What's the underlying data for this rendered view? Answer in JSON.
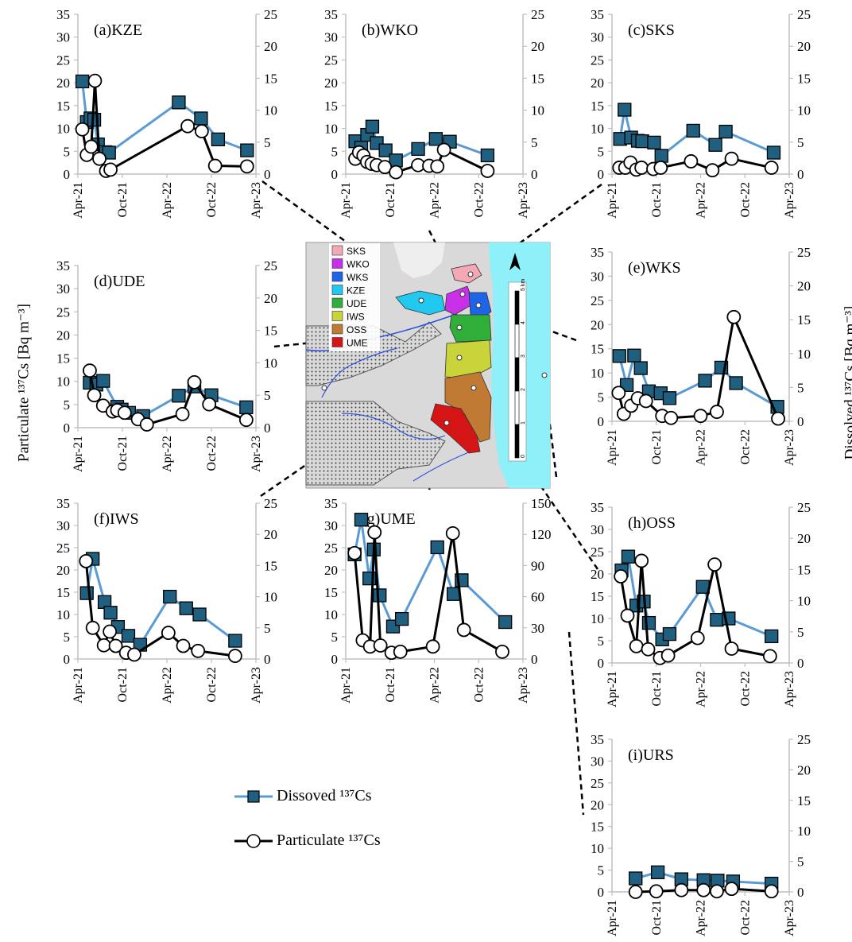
{
  "axis_labels": {
    "particulate": "Particulate ¹³⁷Cs [Bq m⁻³]",
    "dissolved": "Dissolved ¹³⁷Cs [Bq m⁻³]"
  },
  "legend": {
    "dissolved": "Dissoved ¹³⁷Cs",
    "particulate": "Particulate ¹³⁷Cs"
  },
  "colors": {
    "dissolved_line": "#5b9bd5",
    "dissolved_marker": "#1f5f7f",
    "particulate_line": "#000000",
    "axis": "#bfbfbf",
    "map_water": "#8ef0f8",
    "map_land": "#d9d9d9"
  },
  "map": {
    "legend_items": [
      {
        "label": "SKS",
        "color": "#f4a7b4"
      },
      {
        "label": "WKO",
        "color": "#c830e8"
      },
      {
        "label": "WKS",
        "color": "#1e64e6"
      },
      {
        "label": "KZE",
        "color": "#21c8ef"
      },
      {
        "label": "UDE",
        "color": "#2fae3a"
      },
      {
        "label": "IWS",
        "color": "#c9d33a"
      },
      {
        "label": "OSS",
        "color": "#c07a34"
      },
      {
        "label": "UME",
        "color": "#d51515"
      }
    ],
    "scale_label": "5 km",
    "scale_ticks": [
      "0",
      "1",
      "2",
      "3",
      "4",
      "5 km"
    ],
    "north_label": "N"
  },
  "chart_data": [
    {
      "id": "a",
      "type": "line",
      "title": "(a)KZE",
      "x_ticks": [
        "Apr-21",
        "Oct-21",
        "Apr-22",
        "Oct-22",
        "Apr-23"
      ],
      "y_left": {
        "ticks": [
          "0",
          "5",
          "10",
          "15",
          "20",
          "25",
          "30",
          "35"
        ],
        "lim": [
          0,
          35
        ]
      },
      "y_right": {
        "ticks": [
          "0",
          "5",
          "10",
          "15",
          "20",
          "25"
        ],
        "lim": [
          0,
          25
        ]
      },
      "series": [
        {
          "name": "Dissoved ¹³⁷Cs",
          "axis": "left",
          "x": [
            0.6,
            1.2,
            1.7,
            2.2,
            2.7,
            3.7,
            4.2,
            13.6,
            16.6,
            18.9,
            22.8
          ],
          "values": [
            20.3,
            11.4,
            12.2,
            11.9,
            6.5,
            4.8,
            4.7,
            15.7,
            12.2,
            7.6,
            5.2
          ]
        },
        {
          "name": "Particulate ¹³⁷Cs",
          "axis": "right",
          "x": [
            0.6,
            1.2,
            1.8,
            2.3,
            2.9,
            3.8,
            4.4,
            14.8,
            16.7,
            18.5,
            22.8
          ],
          "values": [
            7.0,
            3.0,
            4.3,
            14.6,
            2.4,
            0.5,
            0.7,
            7.5,
            6.7,
            1.3,
            1.2
          ]
        }
      ]
    },
    {
      "id": "b",
      "type": "line",
      "title": "(b)WKO",
      "x_ticks": [
        "Apr-21",
        "Oct-21",
        "Apr-22",
        "Oct-22",
        "Apr-23"
      ],
      "y_left": {
        "ticks": [
          "0",
          "5",
          "10",
          "15",
          "20",
          "25",
          "30",
          "35"
        ],
        "lim": [
          0,
          35
        ]
      },
      "y_right": {
        "ticks": [
          "0",
          "5",
          "10",
          "15",
          "20",
          "25"
        ],
        "lim": [
          0,
          25
        ]
      },
      "series": [
        {
          "name": "Dissoved ¹³⁷Cs",
          "axis": "left",
          "x": [
            1.3,
            2.1,
            2.9,
            3.6,
            4.2,
            5.4,
            6.8,
            9.8,
            12.2,
            14.1,
            19.2
          ],
          "values": [
            7.2,
            5.8,
            8.6,
            10.4,
            6.8,
            5.2,
            3.0,
            5.5,
            7.7,
            7.1,
            4.1
          ]
        },
        {
          "name": "Particulate ¹³⁷Cs",
          "axis": "right",
          "x": [
            1.3,
            1.8,
            2.4,
            2.9,
            3.5,
            4.2,
            5.3,
            6.8,
            9.8,
            11.3,
            12.4,
            13.3,
            19.2
          ],
          "values": [
            2.4,
            3.4,
            2.9,
            1.9,
            1.6,
            1.4,
            1.1,
            0.3,
            1.4,
            1.3,
            1.2,
            3.8,
            0.5
          ]
        }
      ]
    },
    {
      "id": "c",
      "type": "line",
      "title": "(c)SKS",
      "x_ticks": [
        "Apr-21",
        "Oct-21",
        "Apr-22",
        "Oct-22",
        "Apr-23"
      ],
      "y_left": {
        "ticks": [
          "0",
          "5",
          "10",
          "15",
          "20",
          "25",
          "30",
          "35"
        ],
        "lim": [
          0,
          35
        ]
      },
      "y_right": {
        "ticks": [
          "0",
          "5",
          "10",
          "15",
          "20",
          "25"
        ],
        "lim": [
          0,
          25
        ]
      },
      "series": [
        {
          "name": "Dissoved ¹³⁷Cs",
          "axis": "left",
          "x": [
            1.1,
            1.7,
            2.6,
            3.5,
            4.1,
            5.7,
            6.7,
            11.0,
            14.0,
            15.4,
            21.9
          ],
          "values": [
            7.7,
            14.1,
            8.0,
            7.3,
            7.2,
            6.9,
            4.0,
            9.5,
            6.4,
            9.3,
            4.7
          ]
        },
        {
          "name": "Particulate ¹³⁷Cs",
          "axis": "right",
          "x": [
            1.0,
            1.8,
            2.5,
            3.3,
            4.0,
            5.6,
            6.6,
            10.7,
            13.6,
            16.2,
            21.6
          ],
          "values": [
            1.0,
            1.0,
            1.8,
            0.7,
            1.0,
            0.8,
            1.0,
            2.0,
            0.6,
            2.4,
            1.0
          ]
        }
      ]
    },
    {
      "id": "d",
      "type": "line",
      "title": "(d)UDE",
      "x_ticks": [
        "Apr-21",
        "Oct-21",
        "Apr-22",
        "Oct-22",
        "Apr-23"
      ],
      "y_left": {
        "ticks": [
          "0",
          "5",
          "10",
          "15",
          "20",
          "25",
          "30",
          "35"
        ],
        "lim": [
          0,
          35
        ]
      },
      "y_right": {
        "ticks": [
          "0",
          "5",
          "10",
          "15",
          "20",
          "25"
        ],
        "lim": [
          0,
          25
        ]
      },
      "series": [
        {
          "name": "Dissoved ¹³⁷Cs",
          "axis": "left",
          "x": [
            1.6,
            2.5,
            3.4,
            5.3,
            5.9,
            6.9,
            8.8,
            13.6,
            15.7,
            18.0,
            22.7
          ],
          "values": [
            9.7,
            9.3,
            10.1,
            4.5,
            3.9,
            3.2,
            2.5,
            6.9,
            8.9,
            7.0,
            4.4
          ]
        },
        {
          "name": "Particulate ¹³⁷Cs",
          "axis": "right",
          "x": [
            1.6,
            2.2,
            3.4,
            4.7,
            5.3,
            6.3,
            8.1,
            9.3,
            14.1,
            15.7,
            17.7,
            22.7
          ],
          "values": [
            8.8,
            5.0,
            3.4,
            2.5,
            2.7,
            2.3,
            1.3,
            0.5,
            2.1,
            7.0,
            3.6,
            1.2
          ]
        }
      ]
    },
    {
      "id": "e",
      "type": "line",
      "title": "(e)WKS",
      "x_ticks": [
        "Apr-21",
        "Oct-21",
        "Apr-22",
        "Oct-22",
        "Apr-23"
      ],
      "y_left": {
        "ticks": [
          "0",
          "5",
          "10",
          "15",
          "20",
          "25",
          "30",
          "35"
        ],
        "lim": [
          0,
          35
        ]
      },
      "y_right": {
        "ticks": [
          "0",
          "5",
          "10",
          "15",
          "20",
          "25"
        ],
        "lim": [
          0,
          25
        ]
      },
      "series": [
        {
          "name": "Dissoved ¹³⁷Cs",
          "axis": "left",
          "x": [
            1.0,
            2.0,
            3.0,
            3.9,
            5.0,
            6.6,
            7.8,
            12.6,
            14.8,
            16.8,
            22.4
          ],
          "values": [
            13.5,
            7.5,
            13.6,
            11.0,
            6.2,
            5.8,
            4.8,
            8.4,
            11.1,
            7.9,
            3.0
          ]
        },
        {
          "name": "Particulate ¹³⁷Cs",
          "axis": "right",
          "x": [
            0.9,
            1.6,
            2.6,
            3.5,
            4.6,
            6.8,
            8.0,
            12.0,
            14.2,
            16.5,
            22.5
          ],
          "values": [
            4.2,
            1.1,
            2.3,
            3.4,
            3.0,
            0.8,
            0.5,
            0.8,
            1.4,
            15.4,
            0.4
          ]
        }
      ]
    },
    {
      "id": "f",
      "type": "line",
      "title": "(f)IWS",
      "x_ticks": [
        "Apr-21",
        "Oct-21",
        "Apr-22",
        "Oct-22",
        "Apr-23"
      ],
      "y_left": {
        "ticks": [
          "0",
          "5",
          "10",
          "15",
          "20",
          "25",
          "30",
          "35"
        ],
        "lim": [
          0,
          35
        ]
      },
      "y_right": {
        "ticks": [
          "0",
          "5",
          "10",
          "15",
          "20",
          "25"
        ],
        "lim": [
          0,
          25
        ]
      },
      "series": [
        {
          "name": "Dissoved ¹³⁷Cs",
          "axis": "left",
          "x": [
            1.2,
            2.0,
            3.6,
            4.4,
            5.4,
            6.8,
            8.4,
            12.4,
            14.6,
            16.4,
            21.2
          ],
          "values": [
            14.8,
            22.5,
            12.8,
            10.4,
            7.2,
            5.2,
            3.2,
            14.0,
            11.4,
            10.0,
            4.1
          ]
        },
        {
          "name": "Particulate ¹³⁷Cs",
          "axis": "right",
          "x": [
            1.1,
            2.0,
            3.5,
            4.3,
            5.1,
            6.5,
            7.6,
            12.2,
            14.2,
            16.2,
            21.2
          ],
          "values": [
            15.7,
            5.0,
            2.2,
            4.4,
            2.1,
            1.0,
            0.7,
            4.2,
            2.1,
            1.3,
            0.5
          ]
        }
      ]
    },
    {
      "id": "g",
      "type": "line",
      "title": "(g)UME",
      "x_ticks": [
        "Apr-21",
        "Oct-21",
        "Apr-22",
        "Oct-22",
        "Apr-23"
      ],
      "y_left": {
        "ticks": [
          "0",
          "5",
          "10",
          "15",
          "20",
          "25",
          "30",
          "35"
        ],
        "lim": [
          0,
          35
        ]
      },
      "y_right": {
        "ticks": [
          "0",
          "30",
          "60",
          "90",
          "120",
          "150"
        ],
        "lim": [
          0,
          150
        ]
      },
      "series": [
        {
          "name": "Dissoved ¹³⁷Cs",
          "axis": "left",
          "x": [
            1.2,
            2.1,
            3.2,
            3.8,
            4.6,
            6.4,
            7.6,
            12.4,
            14.6,
            15.7,
            21.6
          ],
          "values": [
            23.5,
            31.3,
            18.1,
            24.6,
            14.3,
            7.3,
            9.0,
            25.1,
            14.6,
            17.7,
            8.3
          ]
        },
        {
          "name": "Particulate ¹³⁷Cs",
          "axis": "right",
          "x": [
            1.2,
            2.3,
            3.3,
            3.9,
            4.7,
            6.2,
            7.4,
            11.8,
            14.5,
            16.0,
            21.2
          ],
          "values": [
            102,
            18,
            12,
            122,
            13,
            6,
            7,
            12,
            121,
            28,
            7
          ]
        }
      ]
    },
    {
      "id": "h",
      "type": "line",
      "title": "(h)OSS",
      "x_ticks": [
        "Apr-21",
        "Oct-21",
        "Apr-22",
        "Oct-22",
        "Apr-23"
      ],
      "y_left": {
        "ticks": [
          "0",
          "5",
          "10",
          "15",
          "20",
          "25",
          "30",
          "35"
        ],
        "lim": [
          0,
          35
        ]
      },
      "y_right": {
        "ticks": [
          "0",
          "5",
          "10",
          "15",
          "20",
          "25"
        ],
        "lim": [
          0,
          25
        ]
      },
      "series": [
        {
          "name": "Dissoved ¹³⁷Cs",
          "axis": "left",
          "x": [
            1.3,
            2.2,
            3.3,
            4.3,
            5.0,
            6.8,
            7.8,
            12.3,
            14.2,
            15.8,
            21.6
          ],
          "values": [
            20.8,
            23.9,
            12.9,
            13.8,
            9.0,
            5.3,
            6.5,
            17.1,
            9.7,
            10.0,
            6.0
          ]
        },
        {
          "name": "Particulate ¹³⁷Cs",
          "axis": "right",
          "x": [
            1.2,
            2.1,
            3.3,
            4.0,
            4.9,
            6.5,
            7.6,
            11.6,
            13.9,
            16.2,
            21.4
          ],
          "values": [
            13.9,
            7.6,
            2.7,
            16.4,
            2.2,
            0.8,
            1.2,
            4.0,
            15.8,
            2.3,
            1.1
          ]
        }
      ]
    },
    {
      "id": "i",
      "type": "line",
      "title": "(i)URS",
      "x_ticks": [
        "Apr-21",
        "Oct-21",
        "Apr-22",
        "Oct-22",
        "Apr-23"
      ],
      "y_left": {
        "ticks": [
          "0",
          "5",
          "10",
          "15",
          "20",
          "25",
          "30",
          "35"
        ],
        "lim": [
          0,
          35
        ]
      },
      "y_right": {
        "ticks": [
          "0",
          "5",
          "10",
          "15",
          "20",
          "25"
        ],
        "lim": [
          0,
          25
        ]
      },
      "series": [
        {
          "name": "Dissoved ¹³⁷Cs",
          "axis": "left",
          "x": [
            3.2,
            6.2,
            9.4,
            12.4,
            14.3,
            16.4,
            21.6
          ],
          "values": [
            3.1,
            4.5,
            2.9,
            2.7,
            2.6,
            2.4,
            1.9
          ]
        },
        {
          "name": "Particulate ¹³⁷Cs",
          "axis": "right",
          "x": [
            3.2,
            6.0,
            9.4,
            12.4,
            14.2,
            16.2,
            21.6
          ],
          "values": [
            0.0,
            0.1,
            0.3,
            0.3,
            0.1,
            0.5,
            0.1
          ]
        }
      ]
    }
  ]
}
